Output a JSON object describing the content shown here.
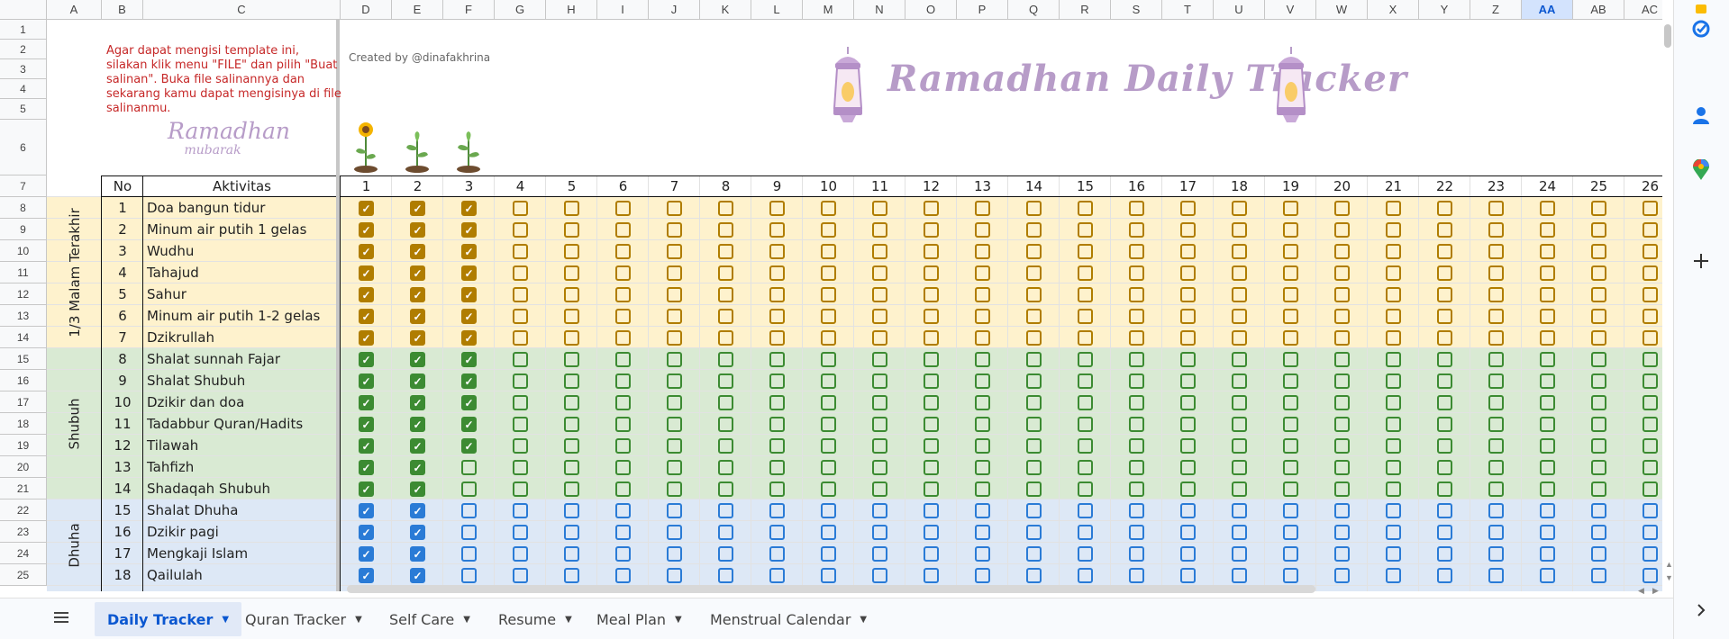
{
  "columns": [
    "A",
    "B",
    "C",
    "D",
    "E",
    "F",
    "G",
    "H",
    "I",
    "J",
    "K",
    "L",
    "M",
    "N",
    "O",
    "P",
    "Q",
    "R",
    "S",
    "T",
    "U",
    "V",
    "W",
    "X",
    "Y",
    "Z",
    "AA",
    "AB",
    "AC"
  ],
  "selected_column": "AA",
  "header": {
    "instruction": "Agar dapat mengisi template ini, silakan klik menu \"FILE\" dan pilih \"Buat salinan\". Buka file salinannya dan sekarang kamu dapat mengisinya di file salinanmu.",
    "credit": "Created by @dinafakhrina",
    "title": "Ramadhan Daily Tracker",
    "sticker_line1": "Ramadhan",
    "sticker_line2": "mubarak"
  },
  "table": {
    "col_no": "No",
    "col_activity": "Aktivitas",
    "days": [
      "1",
      "2",
      "3",
      "4",
      "5",
      "6",
      "7",
      "8",
      "9",
      "10",
      "11",
      "12",
      "13",
      "14",
      "15",
      "16",
      "17",
      "18",
      "19",
      "20",
      "21",
      "22",
      "23",
      "24",
      "25",
      "26"
    ]
  },
  "sections": [
    {
      "label": "1/3 Malam Terakhir",
      "bg": "#fef2cd",
      "box": "#b07d00",
      "rows_span": [
        8,
        14
      ]
    },
    {
      "label": "Shubuh",
      "bg": "#d9ead3",
      "box": "#3c8b32",
      "rows_span": [
        15,
        21
      ]
    },
    {
      "label": "Dhuha",
      "bg": "#dde8f6",
      "box": "#2a7bd6",
      "rows_span": [
        22,
        25
      ]
    }
  ],
  "activities": [
    {
      "no": "1",
      "name": "Doa bangun tidur",
      "done": 3
    },
    {
      "no": "2",
      "name": "Minum air putih 1 gelas",
      "done": 3
    },
    {
      "no": "3",
      "name": "Wudhu",
      "done": 3
    },
    {
      "no": "4",
      "name": "Tahajud",
      "done": 3
    },
    {
      "no": "5",
      "name": "Sahur",
      "done": 3
    },
    {
      "no": "6",
      "name": "Minum air putih 1-2 gelas",
      "done": 3
    },
    {
      "no": "7",
      "name": "Dzikrullah",
      "done": 3
    },
    {
      "no": "8",
      "name": "Shalat sunnah Fajar",
      "done": 3
    },
    {
      "no": "9",
      "name": "Shalat Shubuh",
      "done": 3
    },
    {
      "no": "10",
      "name": "Dzikir dan doa",
      "done": 3
    },
    {
      "no": "11",
      "name": "Tadabbur Quran/Hadits",
      "done": 3
    },
    {
      "no": "12",
      "name": "Tilawah",
      "done": 3
    },
    {
      "no": "13",
      "name": "Tahfizh",
      "done": 2
    },
    {
      "no": "14",
      "name": "Shadaqah Shubuh",
      "done": 2
    },
    {
      "no": "15",
      "name": "Shalat Dhuha",
      "done": 2
    },
    {
      "no": "16",
      "name": "Dzikir pagi",
      "done": 2
    },
    {
      "no": "17",
      "name": "Mengkaji Islam",
      "done": 2
    },
    {
      "no": "18",
      "name": "Qailulah",
      "done": 2
    }
  ],
  "tabs": [
    {
      "label": "Daily Tracker",
      "active": true
    },
    {
      "label": "Quran Tracker",
      "active": false
    },
    {
      "label": "Self Care",
      "active": false
    },
    {
      "label": "Resume",
      "active": false
    },
    {
      "label": "Meal Plan",
      "active": false
    },
    {
      "label": "Menstrual Calendar",
      "active": false
    }
  ],
  "right_panel": [
    "keep-icon",
    "tasks-icon",
    "contacts-icon",
    "maps-icon",
    "add-icon",
    "expand-icon"
  ],
  "colors": {
    "checked_text": "#ffffff",
    "title": "#b79cc8",
    "instruction": "#c62828",
    "accent": "#0b57d0"
  }
}
